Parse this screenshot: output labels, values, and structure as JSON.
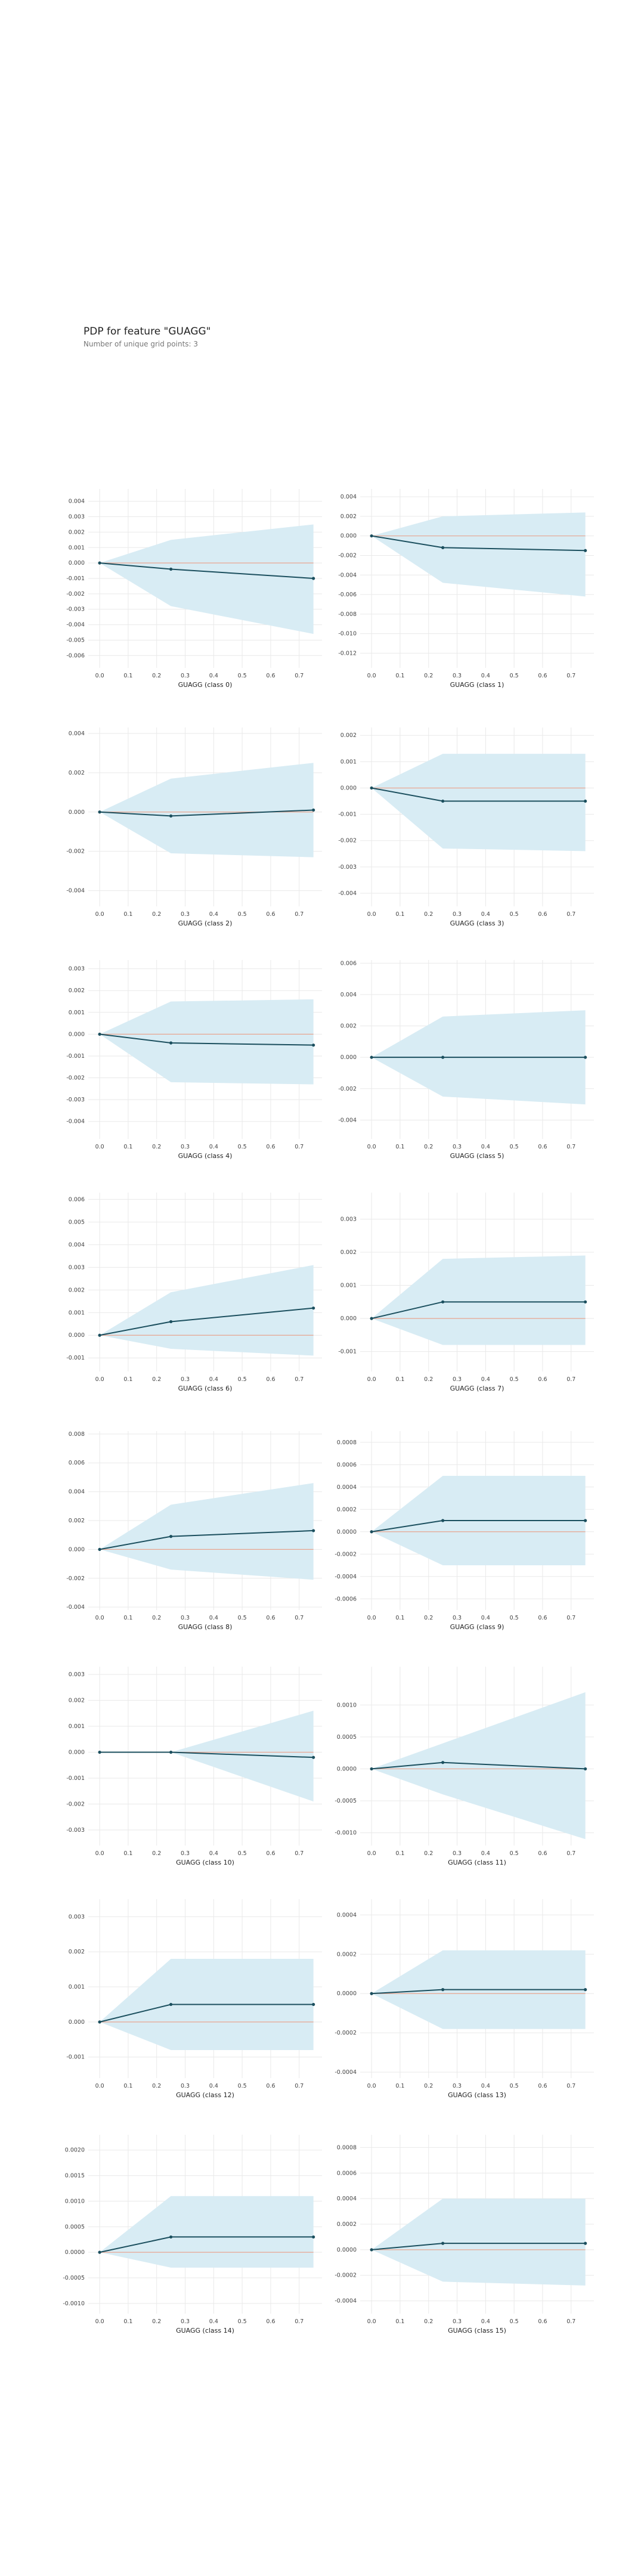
{
  "header": {
    "title": "PDP for feature \"GUAGG\"",
    "subtitle": "Number of unique grid points: 3"
  },
  "colors": {
    "band": "#d8ecf4",
    "line": "#1b4f5e",
    "zero": "#e9a590",
    "grid": "#e9e9e9"
  },
  "chart_data": [
    {
      "type": "line",
      "xlabel": "GUAGG (class 0)",
      "x": [
        0,
        0.25,
        0.75
      ],
      "y": [
        0,
        -0.0004,
        -0.001
      ],
      "lower": [
        0,
        -0.0028,
        -0.0046
      ],
      "upper": [
        0,
        0.0015,
        0.0025
      ],
      "yticks": [
        -0.006,
        -0.005,
        -0.004,
        -0.003,
        -0.002,
        -0.001,
        0,
        0.001,
        0.002,
        0.003,
        0.004
      ],
      "ylabels": [
        "-0.006",
        "-0.005",
        "-0.004",
        "-0.003",
        "-0.002",
        "-0.001",
        "0.000",
        "0.001",
        "0.002",
        "0.003",
        "0.004"
      ],
      "ylim": [
        -0.0068,
        0.0048
      ],
      "xticks": [
        0,
        0.1,
        0.2,
        0.3,
        0.4,
        0.5,
        0.6,
        0.7
      ],
      "xticklabels": [
        "0.0",
        "0.1",
        "0.2",
        "0.3",
        "0.4",
        "0.5",
        "0.6",
        "0.7"
      ],
      "xlim": [
        -0.04,
        0.78
      ]
    },
    {
      "type": "line",
      "xlabel": "GUAGG (class 1)",
      "x": [
        0,
        0.25,
        0.75
      ],
      "y": [
        0,
        -0.0012,
        -0.0015
      ],
      "lower": [
        0,
        -0.0048,
        -0.0062
      ],
      "upper": [
        0,
        0.002,
        0.0024
      ],
      "yticks": [
        -0.012,
        -0.01,
        -0.008,
        -0.006,
        -0.004,
        -0.002,
        0,
        0.002,
        0.004
      ],
      "ylabels": [
        "-0.012",
        "-0.010",
        "-0.008",
        "-0.006",
        "-0.004",
        "-0.002",
        "0.000",
        "0.002",
        "0.004"
      ],
      "ylim": [
        -0.0135,
        0.0048
      ],
      "xticks": [
        0,
        0.1,
        0.2,
        0.3,
        0.4,
        0.5,
        0.6,
        0.7
      ],
      "xticklabels": [
        "0.0",
        "0.1",
        "0.2",
        "0.3",
        "0.4",
        "0.5",
        "0.6",
        "0.7"
      ],
      "xlim": [
        -0.04,
        0.78
      ]
    },
    {
      "type": "line",
      "xlabel": "GUAGG (class 2)",
      "x": [
        0,
        0.25,
        0.75
      ],
      "y": [
        0,
        -0.0002,
        0.0001
      ],
      "lower": [
        0,
        -0.0021,
        -0.0023
      ],
      "upper": [
        0,
        0.0017,
        0.0025
      ],
      "yticks": [
        -0.004,
        -0.002,
        0,
        0.002,
        0.004
      ],
      "ylabels": [
        "-0.004",
        "-0.002",
        "0.000",
        "0.002",
        "0.004"
      ],
      "ylim": [
        -0.0048,
        0.0043
      ],
      "xticks": [
        0,
        0.1,
        0.2,
        0.3,
        0.4,
        0.5,
        0.6,
        0.7
      ],
      "xticklabels": [
        "0.0",
        "0.1",
        "0.2",
        "0.3",
        "0.4",
        "0.5",
        "0.6",
        "0.7"
      ],
      "xlim": [
        -0.04,
        0.78
      ]
    },
    {
      "type": "line",
      "xlabel": "GUAGG (class 3)",
      "x": [
        0,
        0.25,
        0.75
      ],
      "y": [
        0,
        -0.0005,
        -0.0005
      ],
      "lower": [
        0,
        -0.0023,
        -0.0024
      ],
      "upper": [
        0,
        0.0013,
        0.0013
      ],
      "yticks": [
        -0.004,
        -0.003,
        -0.002,
        -0.001,
        0,
        0.001,
        0.002
      ],
      "ylabels": [
        "-0.004",
        "-0.003",
        "-0.002",
        "-0.001",
        "0.000",
        "0.001",
        "0.002"
      ],
      "ylim": [
        -0.0045,
        0.0023
      ],
      "xticks": [
        0,
        0.1,
        0.2,
        0.3,
        0.4,
        0.5,
        0.6,
        0.7
      ],
      "xticklabels": [
        "0.0",
        "0.1",
        "0.2",
        "0.3",
        "0.4",
        "0.5",
        "0.6",
        "0.7"
      ],
      "xlim": [
        -0.04,
        0.78
      ]
    },
    {
      "type": "line",
      "xlabel": "GUAGG (class 4)",
      "x": [
        0,
        0.25,
        0.75
      ],
      "y": [
        0,
        -0.0004,
        -0.0005
      ],
      "lower": [
        0,
        -0.0022,
        -0.0023
      ],
      "upper": [
        0,
        0.0015,
        0.0016
      ],
      "yticks": [
        -0.004,
        -0.003,
        -0.002,
        -0.001,
        0,
        0.001,
        0.002,
        0.003
      ],
      "ylabels": [
        "-0.004",
        "-0.003",
        "-0.002",
        "-0.001",
        "0.000",
        "0.001",
        "0.002",
        "0.003"
      ],
      "ylim": [
        -0.0048,
        0.0034
      ],
      "xticks": [
        0,
        0.1,
        0.2,
        0.3,
        0.4,
        0.5,
        0.6,
        0.7
      ],
      "xticklabels": [
        "0.0",
        "0.1",
        "0.2",
        "0.3",
        "0.4",
        "0.5",
        "0.6",
        "0.7"
      ],
      "xlim": [
        -0.04,
        0.78
      ]
    },
    {
      "type": "line",
      "xlabel": "GUAGG (class 5)",
      "x": [
        0,
        0.25,
        0.75
      ],
      "y": [
        0,
        0,
        0
      ],
      "lower": [
        0,
        -0.0025,
        -0.003
      ],
      "upper": [
        0,
        0.0026,
        0.003
      ],
      "yticks": [
        -0.004,
        -0.002,
        0,
        0.002,
        0.004,
        0.006
      ],
      "ylabels": [
        "-0.004",
        "-0.002",
        "0.000",
        "0.002",
        "0.004",
        "0.006"
      ],
      "ylim": [
        -0.0052,
        0.0062
      ],
      "xticks": [
        0,
        0.1,
        0.2,
        0.3,
        0.4,
        0.5,
        0.6,
        0.7
      ],
      "xticklabels": [
        "0.0",
        "0.1",
        "0.2",
        "0.3",
        "0.4",
        "0.5",
        "0.6",
        "0.7"
      ],
      "xlim": [
        -0.04,
        0.78
      ]
    },
    {
      "type": "line",
      "xlabel": "GUAGG (class 6)",
      "x": [
        0,
        0.25,
        0.75
      ],
      "y": [
        0,
        0.0006,
        0.0012
      ],
      "lower": [
        0,
        -0.0006,
        -0.0009
      ],
      "upper": [
        0,
        0.0019,
        0.0031
      ],
      "yticks": [
        -0.001,
        0,
        0.001,
        0.002,
        0.003,
        0.004,
        0.005,
        0.006
      ],
      "ylabels": [
        "-0.001",
        "0.000",
        "0.001",
        "0.002",
        "0.003",
        "0.004",
        "0.005",
        "0.006"
      ],
      "ylim": [
        -0.0016,
        0.0063
      ],
      "xticks": [
        0,
        0.1,
        0.2,
        0.3,
        0.4,
        0.5,
        0.6,
        0.7
      ],
      "xticklabels": [
        "0.0",
        "0.1",
        "0.2",
        "0.3",
        "0.4",
        "0.5",
        "0.6",
        "0.7"
      ],
      "xlim": [
        -0.04,
        0.78
      ]
    },
    {
      "type": "line",
      "xlabel": "GUAGG (class 7)",
      "x": [
        0,
        0.25,
        0.75
      ],
      "y": [
        0,
        0.0005,
        0.0005
      ],
      "lower": [
        0,
        -0.0008,
        -0.0008
      ],
      "upper": [
        0,
        0.0018,
        0.0019
      ],
      "yticks": [
        -0.001,
        0,
        0.001,
        0.002,
        0.003
      ],
      "ylabels": [
        "-0.001",
        "0.000",
        "0.001",
        "0.002",
        "0.003"
      ],
      "ylim": [
        -0.0016,
        0.0038
      ],
      "xticks": [
        0,
        0.1,
        0.2,
        0.3,
        0.4,
        0.5,
        0.6,
        0.7
      ],
      "xticklabels": [
        "0.0",
        "0.1",
        "0.2",
        "0.3",
        "0.4",
        "0.5",
        "0.6",
        "0.7"
      ],
      "xlim": [
        -0.04,
        0.78
      ]
    },
    {
      "type": "line",
      "xlabel": "GUAGG (class 8)",
      "x": [
        0,
        0.25,
        0.75
      ],
      "y": [
        0,
        0.0009,
        0.0013
      ],
      "lower": [
        0,
        -0.0014,
        -0.0021
      ],
      "upper": [
        0,
        0.0031,
        0.0046
      ],
      "yticks": [
        -0.004,
        -0.002,
        0,
        0.002,
        0.004,
        0.006,
        0.008
      ],
      "ylabels": [
        "-0.004",
        "-0.002",
        "0.000",
        "0.002",
        "0.004",
        "0.006",
        "0.008"
      ],
      "ylim": [
        -0.0042,
        0.0082
      ],
      "xticks": [
        0,
        0.1,
        0.2,
        0.3,
        0.4,
        0.5,
        0.6,
        0.7
      ],
      "xticklabels": [
        "0.0",
        "0.1",
        "0.2",
        "0.3",
        "0.4",
        "0.5",
        "0.6",
        "0.7"
      ],
      "xlim": [
        -0.04,
        0.78
      ]
    },
    {
      "type": "line",
      "xlabel": "GUAGG (class 9)",
      "x": [
        0,
        0.25,
        0.75
      ],
      "y": [
        0,
        0.0001,
        0.0001
      ],
      "lower": [
        0,
        -0.0003,
        -0.0003
      ],
      "upper": [
        0,
        0.0005,
        0.0005
      ],
      "yticks": [
        -0.0006,
        -0.0004,
        -0.0002,
        0,
        0.0002,
        0.0004,
        0.0006,
        0.0008
      ],
      "ylabels": [
        "-0.0006",
        "-0.0004",
        "-0.0002",
        "0.0000",
        "0.0002",
        "0.0004",
        "0.0006",
        "0.0008"
      ],
      "ylim": [
        -0.0007,
        0.0009
      ],
      "xticks": [
        0,
        0.1,
        0.2,
        0.3,
        0.4,
        0.5,
        0.6,
        0.7
      ],
      "xticklabels": [
        "0.0",
        "0.1",
        "0.2",
        "0.3",
        "0.4",
        "0.5",
        "0.6",
        "0.7"
      ],
      "xlim": [
        -0.04,
        0.78
      ]
    },
    {
      "type": "line",
      "xlabel": "GUAGG (class 10)",
      "x": [
        0,
        0.25,
        0.75
      ],
      "y": [
        0,
        0,
        -0.0002
      ],
      "lower": [
        0,
        0,
        -0.0019
      ],
      "upper": [
        0,
        0,
        0.0016
      ],
      "yticks": [
        -0.003,
        -0.002,
        -0.001,
        0,
        0.001,
        0.002,
        0.003
      ],
      "ylabels": [
        "-0.003",
        "-0.002",
        "-0.001",
        "0.000",
        "0.001",
        "0.002",
        "0.003"
      ],
      "ylim": [
        -0.0036,
        0.0033
      ],
      "xticks": [
        0,
        0.1,
        0.2,
        0.3,
        0.4,
        0.5,
        0.6,
        0.7
      ],
      "xticklabels": [
        "0.0",
        "0.1",
        "0.2",
        "0.3",
        "0.4",
        "0.5",
        "0.6",
        "0.7"
      ],
      "xlim": [
        -0.04,
        0.78
      ]
    },
    {
      "type": "line",
      "xlabel": "GUAGG (class 11)",
      "x": [
        0,
        0.25,
        0.75
      ],
      "y": [
        0,
        0.0001,
        0
      ],
      "lower": [
        0,
        -0.0004,
        -0.0011
      ],
      "upper": [
        0,
        0.0004,
        0.0012
      ],
      "yticks": [
        -0.001,
        -0.0005,
        0,
        0.0005,
        0.001
      ],
      "ylabels": [
        "-0.0010",
        "-0.0005",
        "0.0000",
        "0.0005",
        "0.0010"
      ],
      "ylim": [
        -0.0012,
        0.0016
      ],
      "xticks": [
        0,
        0.1,
        0.2,
        0.3,
        0.4,
        0.5,
        0.6,
        0.7
      ],
      "xticklabels": [
        "0.0",
        "0.1",
        "0.2",
        "0.3",
        "0.4",
        "0.5",
        "0.6",
        "0.7"
      ],
      "xlim": [
        -0.04,
        0.78
      ]
    },
    {
      "type": "line",
      "xlabel": "GUAGG (class 12)",
      "x": [
        0,
        0.25,
        0.75
      ],
      "y": [
        0,
        0.0005,
        0.0005
      ],
      "lower": [
        0,
        -0.0008,
        -0.0008
      ],
      "upper": [
        0,
        0.0018,
        0.0018
      ],
      "yticks": [
        -0.001,
        0,
        0.001,
        0.002,
        0.003
      ],
      "ylabels": [
        "-0.001",
        "0.000",
        "0.001",
        "0.002",
        "0.003"
      ],
      "ylim": [
        -0.0016,
        0.0035
      ],
      "xticks": [
        0,
        0.1,
        0.2,
        0.3,
        0.4,
        0.5,
        0.6,
        0.7
      ],
      "xticklabels": [
        "0.0",
        "0.1",
        "0.2",
        "0.3",
        "0.4",
        "0.5",
        "0.6",
        "0.7"
      ],
      "xlim": [
        -0.04,
        0.78
      ]
    },
    {
      "type": "line",
      "xlabel": "GUAGG (class 13)",
      "x": [
        0,
        0.25,
        0.75
      ],
      "y": [
        0,
        2e-05,
        2e-05
      ],
      "lower": [
        0,
        -0.00018,
        -0.00018
      ],
      "upper": [
        0,
        0.00022,
        0.00022
      ],
      "yticks": [
        -0.0004,
        -0.0002,
        0,
        0.0002,
        0.0004
      ],
      "ylabels": [
        "-0.0004",
        "-0.0002",
        "0.0000",
        "0.0002",
        "0.0004"
      ],
      "ylim": [
        -0.00043,
        0.00048
      ],
      "xticks": [
        0,
        0.1,
        0.2,
        0.3,
        0.4,
        0.5,
        0.6,
        0.7
      ],
      "xticklabels": [
        "0.0",
        "0.1",
        "0.2",
        "0.3",
        "0.4",
        "0.5",
        "0.6",
        "0.7"
      ],
      "xlim": [
        -0.04,
        0.78
      ]
    },
    {
      "type": "line",
      "xlabel": "GUAGG (class 14)",
      "x": [
        0,
        0.25,
        0.75
      ],
      "y": [
        0,
        0.0003,
        0.0003
      ],
      "lower": [
        0,
        -0.0003,
        -0.0003
      ],
      "upper": [
        0,
        0.0011,
        0.0011
      ],
      "yticks": [
        -0.001,
        -0.0005,
        0,
        0.0005,
        0.001,
        0.0015,
        0.002
      ],
      "ylabels": [
        "-0.0010",
        "-0.0005",
        "0.0000",
        "0.0005",
        "0.0010",
        "0.0015",
        "0.0020"
      ],
      "ylim": [
        -0.0012,
        0.0023
      ],
      "xticks": [
        0,
        0.1,
        0.2,
        0.3,
        0.4,
        0.5,
        0.6,
        0.7
      ],
      "xticklabels": [
        "0.0",
        "0.1",
        "0.2",
        "0.3",
        "0.4",
        "0.5",
        "0.6",
        "0.7"
      ],
      "xlim": [
        -0.04,
        0.78
      ]
    },
    {
      "type": "line",
      "xlabel": "GUAGG (class 15)",
      "x": [
        0,
        0.25,
        0.75
      ],
      "y": [
        0,
        5e-05,
        5e-05
      ],
      "lower": [
        0,
        -0.00025,
        -0.00028
      ],
      "upper": [
        0,
        0.0004,
        0.0004
      ],
      "yticks": [
        -0.0004,
        -0.0002,
        0,
        0.0002,
        0.0004,
        0.0006,
        0.0008
      ],
      "ylabels": [
        "-0.0004",
        "-0.0002",
        "0.0000",
        "0.0002",
        "0.0004",
        "0.0006",
        "0.0008"
      ],
      "ylim": [
        -0.0005,
        0.0009
      ],
      "xticks": [
        0,
        0.1,
        0.2,
        0.3,
        0.4,
        0.5,
        0.6,
        0.7
      ],
      "xticklabels": [
        "0.0",
        "0.1",
        "0.2",
        "0.3",
        "0.4",
        "0.5",
        "0.6",
        "0.7"
      ],
      "xlim": [
        -0.04,
        0.78
      ]
    }
  ]
}
